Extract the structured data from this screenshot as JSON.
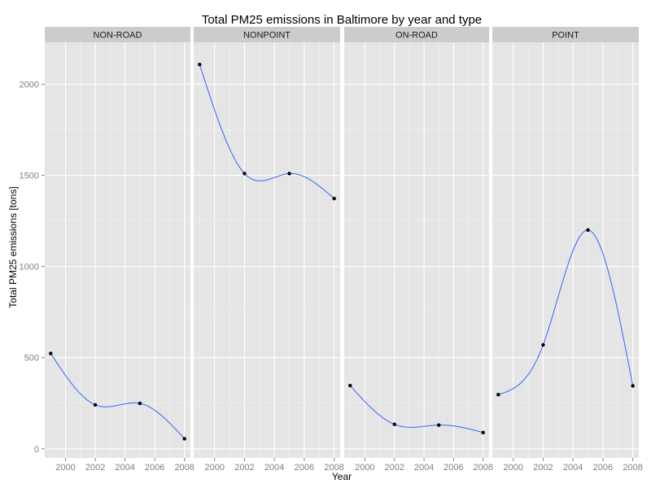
{
  "colors": {
    "panel_background": "#e5e5e5",
    "strip_background": "#cccccc",
    "grid_major": "#ffffff",
    "grid_minor": "#f2f2f2",
    "line": "#3366ff",
    "point": "#000000"
  },
  "chart_data": {
    "type": "line",
    "title": "Total PM25 emissions in Baltimore by year and type",
    "xlabel": "Year",
    "ylabel": "Total PM25 emissions [tons]",
    "facet_layout": "1 row x 4 columns, shared y axis",
    "grid": true,
    "smoothed_line": true,
    "x_ticks": [
      2000,
      2002,
      2004,
      2006,
      2008
    ],
    "y_ticks": [
      0,
      500,
      1000,
      1500,
      2000
    ],
    "xlim": [
      1998.6,
      2008.4
    ],
    "ylim": [
      -50,
      2230
    ],
    "panels": [
      {
        "label": "NON-ROAD",
        "x": [
          1999,
          2002,
          2005,
          2008
        ],
        "y": [
          523,
          241,
          249,
          55
        ]
      },
      {
        "label": "NONPOINT",
        "x": [
          1999,
          2002,
          2005,
          2008
        ],
        "y": [
          2108,
          1510,
          1510,
          1373
        ]
      },
      {
        "label": "ON-ROAD",
        "x": [
          1999,
          2002,
          2005,
          2008
        ],
        "y": [
          347,
          134,
          130,
          89
        ]
      },
      {
        "label": "POINT",
        "x": [
          1999,
          2002,
          2005,
          2008
        ],
        "y": [
          297,
          570,
          1200,
          345
        ]
      }
    ]
  }
}
